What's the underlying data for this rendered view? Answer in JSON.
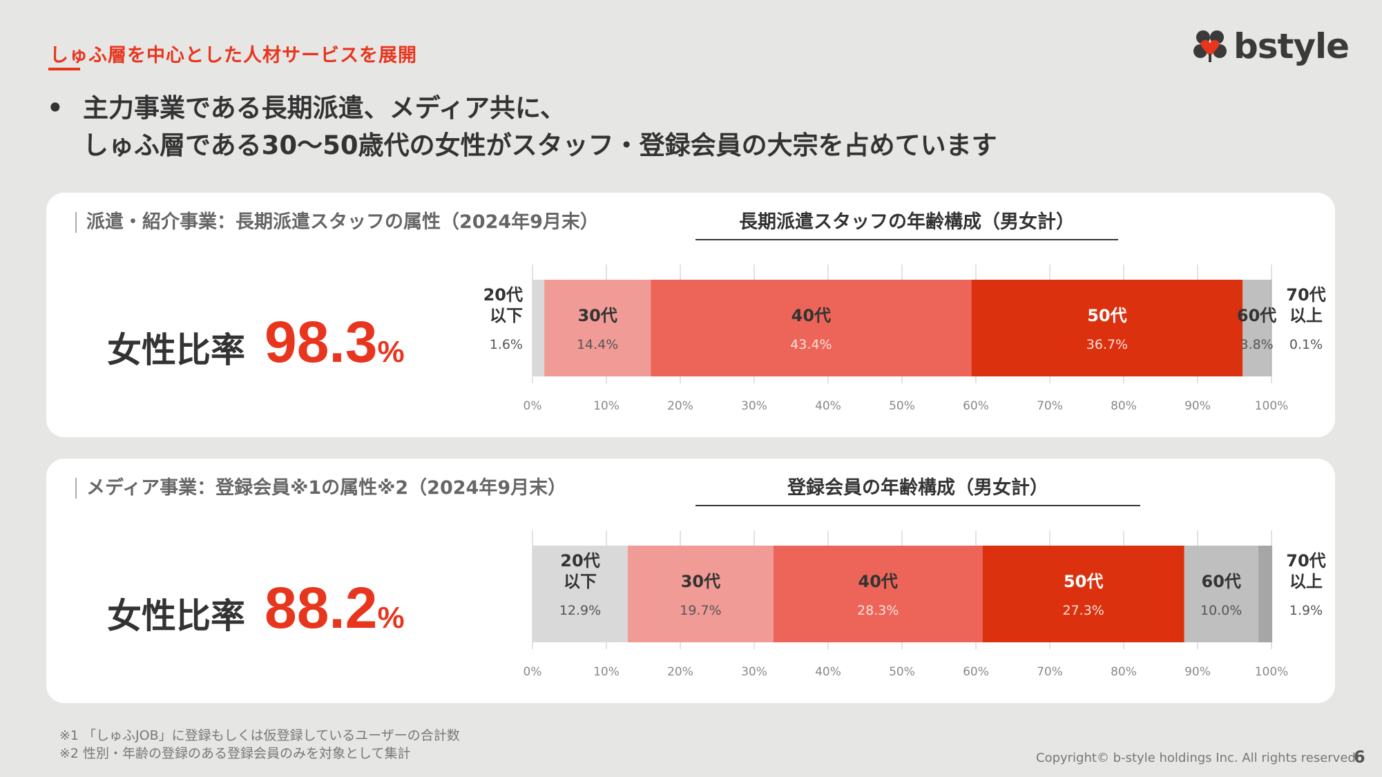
{
  "section_title": "しゅふ層を中心とした人材サービスを展開",
  "logo": {
    "text": "bstyle",
    "icon": "clover-heart-icon"
  },
  "headline": {
    "bullet": "•",
    "line1": "主力事業である長期派遣、メディア共に、",
    "line2": "しゅふ層である30～50歳代の女性がスタッフ・登録会員の大宗を占めています"
  },
  "panels": [
    {
      "label": "派遣・紹介事業：長期派遣スタッフの属性（2024年9月末）",
      "metric_label": "女性比率",
      "metric_value": "98.3",
      "metric_unit": "%"
    },
    {
      "label": "メディア事業：登録会員※1の属性※2（2024年9月末）",
      "metric_label": "女性比率",
      "metric_value": "88.2",
      "metric_unit": "%"
    }
  ],
  "chart_data": [
    {
      "type": "bar",
      "orientation": "horizontal-stacked-100",
      "title": "長期派遣スタッフの年齢構成（男女計）",
      "xlim": [
        0,
        100
      ],
      "xticks": [
        "0%",
        "10%",
        "20%",
        "30%",
        "40%",
        "50%",
        "60%",
        "70%",
        "80%",
        "90%",
        "100%"
      ],
      "grid": true,
      "series": [
        {
          "name": "20代以下",
          "label_lines": [
            "20代",
            "以下"
          ],
          "value": 1.6,
          "value_label": "1.6%",
          "color": "#d9d9d9"
        },
        {
          "name": "30代",
          "label_lines": [
            "30代"
          ],
          "value": 14.4,
          "value_label": "14.4%",
          "color": "#f09b96"
        },
        {
          "name": "40代",
          "label_lines": [
            "40代"
          ],
          "value": 43.4,
          "value_label": "43.4%",
          "color": "#ec6558"
        },
        {
          "name": "50代",
          "label_lines": [
            "50代"
          ],
          "value": 36.7,
          "value_label": "36.7%",
          "color": "#dc310e"
        },
        {
          "name": "60代",
          "label_lines": [
            "60代"
          ],
          "value": 3.8,
          "value_label": "3.8%",
          "color": "#bfbfbf"
        },
        {
          "name": "70代以上",
          "label_lines": [
            "70代",
            "以上"
          ],
          "value": 0.1,
          "value_label": "0.1%",
          "color": "#a6a6a6"
        }
      ]
    },
    {
      "type": "bar",
      "orientation": "horizontal-stacked-100",
      "title": "登録会員の年齢構成（男女計）",
      "xlim": [
        0,
        100
      ],
      "xticks": [
        "0%",
        "10%",
        "20%",
        "30%",
        "40%",
        "50%",
        "60%",
        "70%",
        "80%",
        "90%",
        "100%"
      ],
      "grid": true,
      "series": [
        {
          "name": "20代以下",
          "label_lines": [
            "20代",
            "以下"
          ],
          "value": 12.9,
          "value_label": "12.9%",
          "color": "#d9d9d9"
        },
        {
          "name": "30代",
          "label_lines": [
            "30代"
          ],
          "value": 19.7,
          "value_label": "19.7%",
          "color": "#f09b96"
        },
        {
          "name": "40代",
          "label_lines": [
            "40代"
          ],
          "value": 28.3,
          "value_label": "28.3%",
          "color": "#ec6558"
        },
        {
          "name": "50代",
          "label_lines": [
            "50代"
          ],
          "value": 27.3,
          "value_label": "27.3%",
          "color": "#dc310e"
        },
        {
          "name": "60代",
          "label_lines": [
            "60代"
          ],
          "value": 10.0,
          "value_label": "10.0%",
          "color": "#bfbfbf"
        },
        {
          "name": "70代以上",
          "label_lines": [
            "70代",
            "以上"
          ],
          "value": 1.9,
          "value_label": "1.9%",
          "color": "#a6a6a6"
        }
      ]
    }
  ],
  "footnotes": [
    "※1 「しゅふJOB」に登録もしくは仮登録しているユーザーの合計数",
    "※2 性別・年齢の登録のある登録会員のみを対象として集計"
  ],
  "copyright": "Copyright© b-style holdings Inc. All rights reserved.",
  "page_number": "6"
}
